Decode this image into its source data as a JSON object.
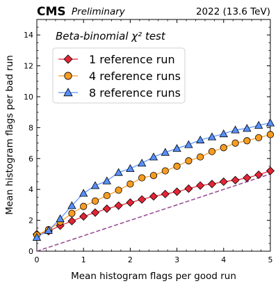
{
  "header": {
    "experiment": "CMS",
    "status": "Preliminary",
    "run_info": "2022 (13.6 TeV)"
  },
  "chart_data": {
    "type": "line",
    "annotation": "Beta-binomial χ² test",
    "xlabel": "Mean histogram flags per good run",
    "ylabel": "Mean histogram flags per bad run",
    "xlim": [
      0,
      5
    ],
    "ylim": [
      0,
      15
    ],
    "xticks": [
      0,
      1,
      2,
      3,
      4,
      5
    ],
    "yticks": [
      0,
      2,
      4,
      6,
      8,
      10,
      12,
      14
    ],
    "grid": false,
    "legend_position": "top-left",
    "reference_line": {
      "x": [
        0,
        5
      ],
      "y": [
        0,
        5
      ],
      "color": "#9b4f96",
      "style": "dashed"
    },
    "series": [
      {
        "name": "1 reference run",
        "color": "#e42536",
        "marker": "diamond",
        "x": [
          0.0,
          0.25,
          0.5,
          0.75,
          1.0,
          1.25,
          1.5,
          1.75,
          2.0,
          2.25,
          2.5,
          2.75,
          3.0,
          3.25,
          3.5,
          3.75,
          4.0,
          4.25,
          4.5,
          4.75,
          5.0
        ],
        "y": [
          1.1,
          1.3,
          1.65,
          1.95,
          2.25,
          2.5,
          2.75,
          2.95,
          3.15,
          3.35,
          3.55,
          3.7,
          3.85,
          4.05,
          4.25,
          4.35,
          4.5,
          4.6,
          4.75,
          4.95,
          5.2
        ]
      },
      {
        "name": "4 reference runs",
        "color": "#f89c20",
        "marker": "circle",
        "x": [
          0.0,
          0.25,
          0.5,
          0.75,
          1.0,
          1.25,
          1.5,
          1.75,
          2.0,
          2.25,
          2.5,
          2.75,
          3.0,
          3.25,
          3.5,
          3.75,
          4.0,
          4.25,
          4.5,
          4.75,
          5.0
        ],
        "y": [
          1.05,
          1.4,
          1.9,
          2.45,
          2.9,
          3.25,
          3.6,
          3.95,
          4.35,
          4.75,
          4.9,
          5.2,
          5.5,
          5.85,
          6.1,
          6.45,
          6.7,
          7.0,
          7.15,
          7.35,
          7.55
        ]
      },
      {
        "name": "8 reference runs",
        "color": "#5790fc",
        "marker": "triangle",
        "x": [
          0.0,
          0.25,
          0.5,
          0.75,
          1.0,
          1.25,
          1.5,
          1.75,
          2.0,
          2.25,
          2.5,
          2.75,
          3.0,
          3.25,
          3.5,
          3.75,
          4.0,
          4.25,
          4.5,
          4.75,
          5.0
        ],
        "y": [
          0.9,
          1.35,
          2.1,
          2.95,
          3.75,
          4.25,
          4.55,
          5.1,
          5.35,
          5.7,
          6.1,
          6.4,
          6.65,
          6.9,
          7.2,
          7.4,
          7.6,
          7.85,
          7.95,
          8.15,
          8.3
        ]
      }
    ]
  }
}
